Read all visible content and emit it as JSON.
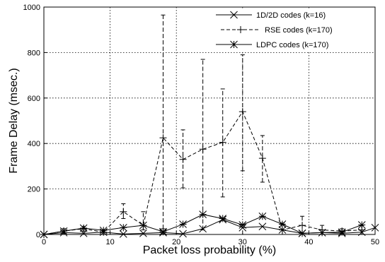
{
  "chart_data": {
    "type": "line",
    "title": "",
    "xlabel": "Packet loss probability (%)",
    "ylabel": "Frame Delay (msec.)",
    "xlim": [
      0,
      50
    ],
    "ylim": [
      0,
      1000
    ],
    "x_ticks": [
      "0",
      "10",
      "20",
      "30",
      "40",
      "50"
    ],
    "y_ticks": [
      "0",
      "200",
      "400",
      "600",
      "800",
      "1000"
    ],
    "grid": true,
    "legend_position": "top-right",
    "series": [
      {
        "name": "1D/2D codes (k=16)",
        "line_style": "solid",
        "marker": "x",
        "x": [
          0,
          3,
          6,
          9,
          12,
          15,
          18,
          21,
          24,
          27,
          30,
          33,
          36,
          39,
          42,
          45,
          48,
          50
        ],
        "y": [
          0,
          8,
          5,
          10,
          2,
          5,
          8,
          3,
          25,
          65,
          30,
          35,
          20,
          5,
          8,
          5,
          10,
          30
        ],
        "err_low": [],
        "err_high": []
      },
      {
        "name": "RSE codes (k=170)",
        "line_style": "dashed",
        "marker": "+",
        "x": [
          0,
          3,
          6,
          9,
          12,
          15,
          18,
          21,
          24,
          27,
          30,
          33,
          36,
          39,
          42,
          45,
          48
        ],
        "y": [
          0,
          15,
          25,
          10,
          100,
          40,
          425,
          330,
          375,
          405,
          540,
          335,
          20,
          40,
          20,
          15,
          20
        ],
        "err_low": [
          0,
          5,
          15,
          0,
          70,
          20,
          25,
          205,
          20,
          165,
          280,
          230,
          0,
          5,
          0,
          5,
          0
        ],
        "err_high": [
          0,
          25,
          35,
          20,
          135,
          100,
          965,
          460,
          770,
          640,
          790,
          435,
          50,
          80,
          40,
          25,
          40
        ]
      },
      {
        "name": "LDPC codes (k=170)",
        "line_style": "solid",
        "marker": "*",
        "x": [
          0,
          3,
          6,
          9,
          12,
          15,
          18,
          21,
          24,
          27,
          30,
          33,
          36,
          39,
          42,
          45,
          48
        ],
        "y": [
          0,
          15,
          28,
          18,
          30,
          40,
          12,
          45,
          88,
          70,
          42,
          80,
          45,
          5,
          8,
          10,
          42
        ],
        "err_low": [],
        "err_high": []
      }
    ]
  }
}
